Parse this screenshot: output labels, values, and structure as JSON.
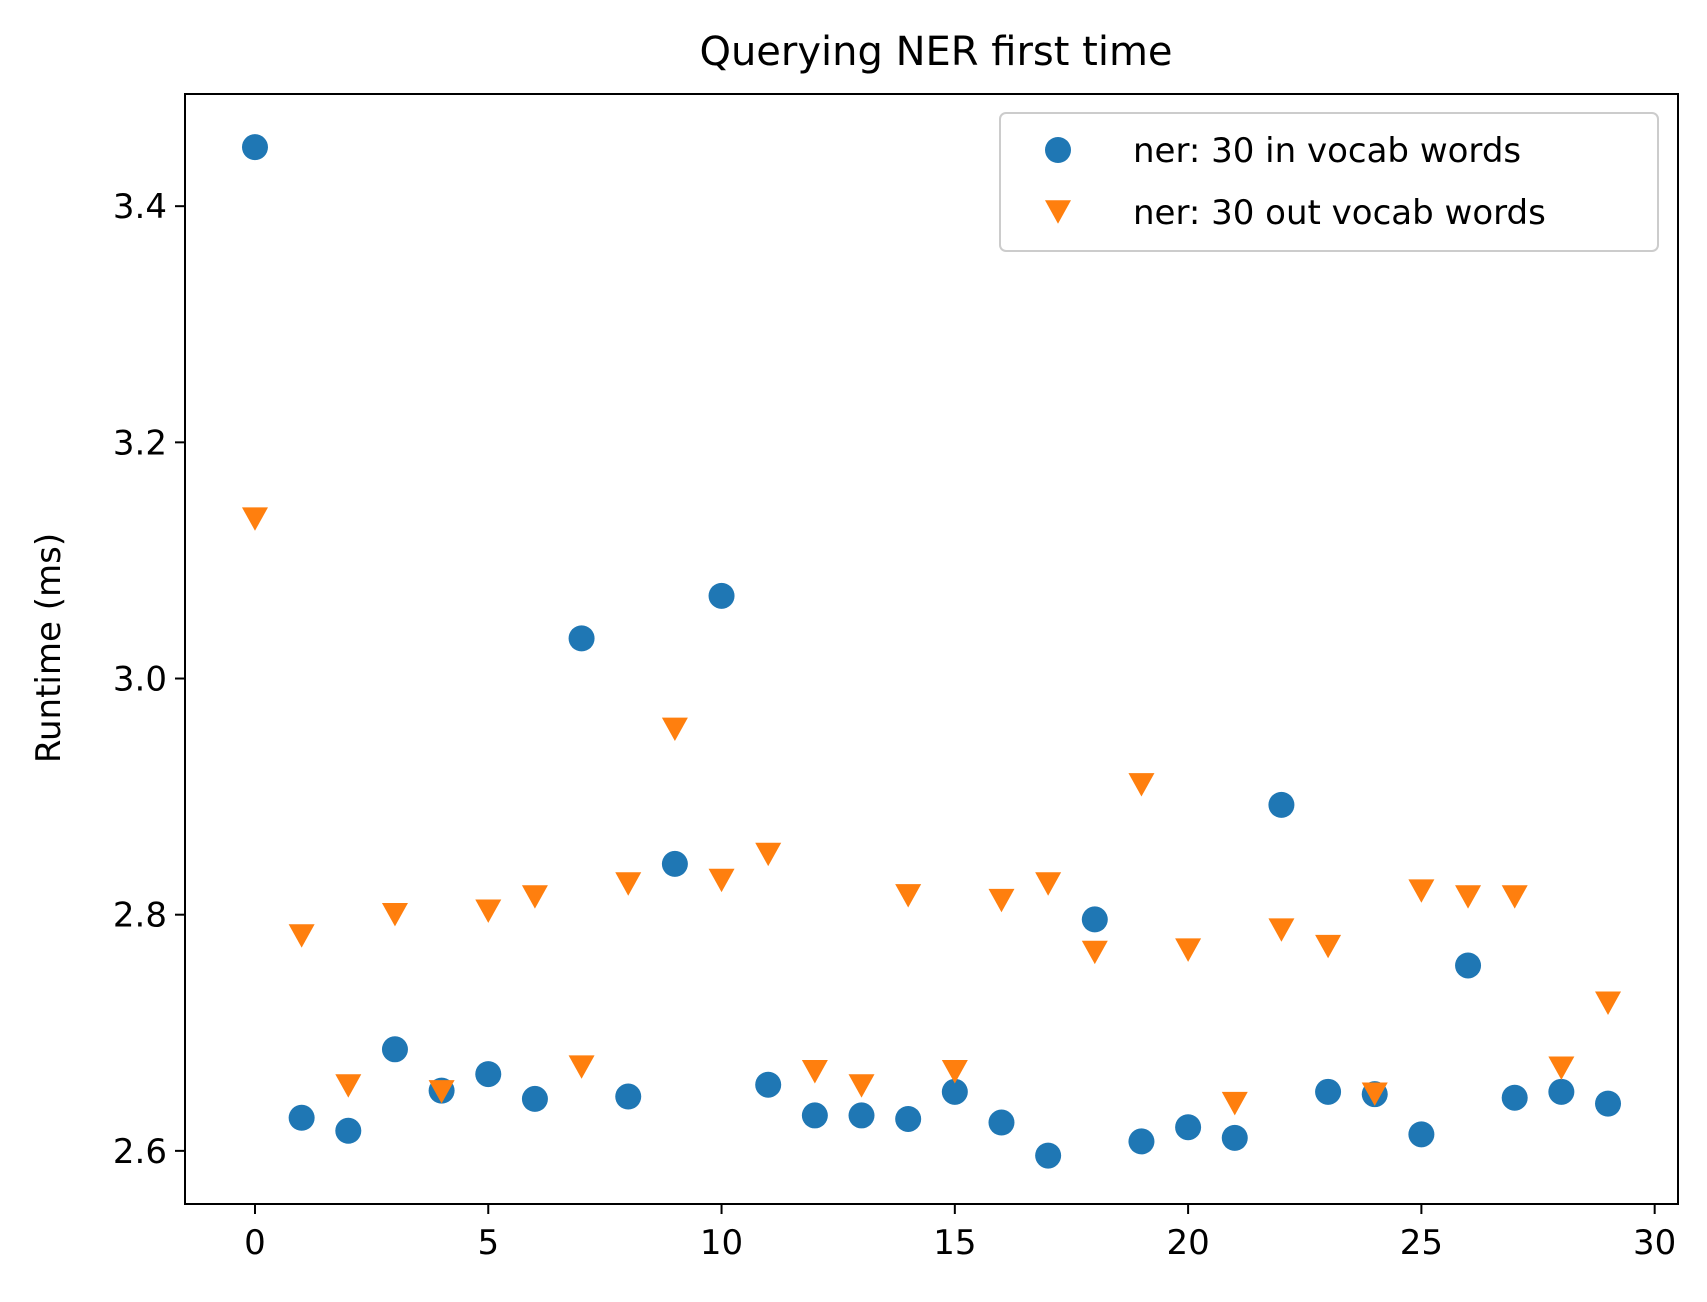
{
  "chart_data": {
    "type": "scatter",
    "title": "Querying NER first time",
    "xlabel": "",
    "ylabel": "Runtime (ms)",
    "xlim": [
      -1.5,
      30.5
    ],
    "ylim": [
      2.555,
      3.495
    ],
    "xticks": [
      0,
      5,
      10,
      15,
      20,
      25,
      30
    ],
    "yticks": [
      2.6,
      2.8,
      3.0,
      3.2,
      3.4
    ],
    "xtick_labels": [
      "0",
      "5",
      "10",
      "15",
      "20",
      "25",
      "30"
    ],
    "ytick_labels": [
      "2.6",
      "2.8",
      "3.0",
      "3.2",
      "3.4"
    ],
    "grid": false,
    "legend_position": "top-right",
    "x": [
      0,
      1,
      2,
      3,
      4,
      5,
      6,
      7,
      8,
      9,
      10,
      11,
      12,
      13,
      14,
      15,
      16,
      17,
      18,
      19,
      20,
      21,
      22,
      23,
      24,
      25,
      26,
      27,
      28,
      29
    ],
    "series": [
      {
        "name": "ner: 30 in vocab words",
        "marker": "circle",
        "color": "#1f77b4",
        "values": [
          3.45,
          2.628,
          2.617,
          2.686,
          2.651,
          2.665,
          2.644,
          3.034,
          2.646,
          2.843,
          3.07,
          2.656,
          2.63,
          2.63,
          2.627,
          2.65,
          2.624,
          2.596,
          2.796,
          2.608,
          2.62,
          2.611,
          2.893,
          2.65,
          2.648,
          2.614,
          2.757,
          2.645,
          2.65,
          2.64
        ]
      },
      {
        "name": "ner: 30 out vocab words",
        "marker": "triangle-down",
        "color": "#ff7f0e",
        "values": [
          3.135,
          2.782,
          2.655,
          2.8,
          2.65,
          2.803,
          2.815,
          2.671,
          2.826,
          2.957,
          2.829,
          2.851,
          2.667,
          2.655,
          2.816,
          2.667,
          2.812,
          2.826,
          2.768,
          2.91,
          2.77,
          2.64,
          2.787,
          2.773,
          2.648,
          2.82,
          2.815,
          2.815,
          2.67,
          2.725
        ]
      }
    ]
  }
}
